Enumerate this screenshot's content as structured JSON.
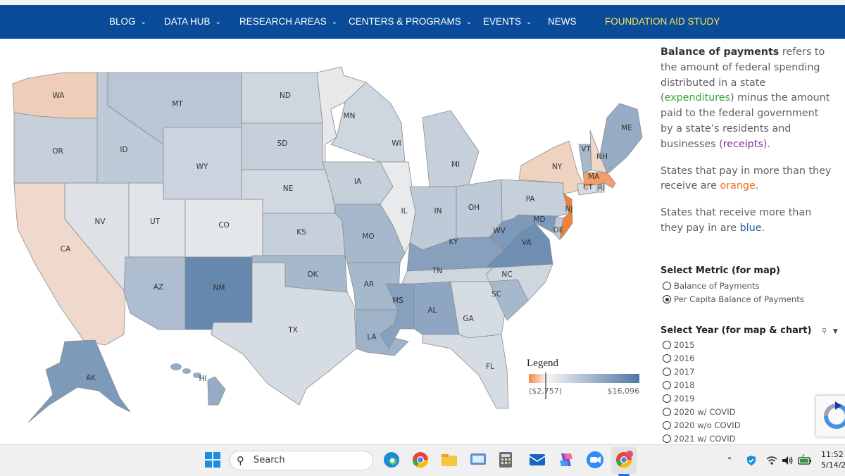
{
  "nav": {
    "items": [
      {
        "label": "BLOG",
        "has_menu": true
      },
      {
        "label": "DATA HUB",
        "has_menu": true
      },
      {
        "label": "RESEARCH AREAS",
        "has_menu": true
      },
      {
        "label": "CENTERS & PROGRAMS",
        "has_menu": true
      },
      {
        "label": "EVENTS",
        "has_menu": true
      },
      {
        "label": "NEWS",
        "has_menu": false
      },
      {
        "label": "FOUNDATION AID STUDY",
        "has_menu": false
      }
    ],
    "highlight_color": "#ffe74a",
    "bar_color": "#0a4c9a"
  },
  "map": {
    "states": [
      {
        "abbr": "WA",
        "level": -0.28
      },
      {
        "abbr": "OR",
        "level": 0.25
      },
      {
        "abbr": "CA",
        "level": -0.18
      },
      {
        "abbr": "NV",
        "level": 0.1
      },
      {
        "abbr": "ID",
        "level": 0.3
      },
      {
        "abbr": "MT",
        "level": 0.33
      },
      {
        "abbr": "WY",
        "level": 0.22
      },
      {
        "abbr": "UT",
        "level": 0.08
      },
      {
        "abbr": "CO",
        "level": 0.06
      },
      {
        "abbr": "AZ",
        "level": 0.4
      },
      {
        "abbr": "NM",
        "level": 0.85
      },
      {
        "abbr": "ND",
        "level": 0.2
      },
      {
        "abbr": "SD",
        "level": 0.25
      },
      {
        "abbr": "NE",
        "level": 0.18
      },
      {
        "abbr": "KS",
        "level": 0.25
      },
      {
        "abbr": "OK",
        "level": 0.45
      },
      {
        "abbr": "TX",
        "level": 0.15
      },
      {
        "abbr": "MN",
        "level": 0.05
      },
      {
        "abbr": "IA",
        "level": 0.25
      },
      {
        "abbr": "MO",
        "level": 0.45
      },
      {
        "abbr": "AR",
        "level": 0.45
      },
      {
        "abbr": "LA",
        "level": 0.5
      },
      {
        "abbr": "WI",
        "level": 0.2
      },
      {
        "abbr": "IL",
        "level": 0.03
      },
      {
        "abbr": "MI",
        "level": 0.25
      },
      {
        "abbr": "IN",
        "level": 0.3
      },
      {
        "abbr": "OH",
        "level": 0.3
      },
      {
        "abbr": "KY",
        "level": 0.65
      },
      {
        "abbr": "TN",
        "level": 0.2
      },
      {
        "abbr": "MS",
        "level": 0.65
      },
      {
        "abbr": "AL",
        "level": 0.6
      },
      {
        "abbr": "GA",
        "level": 0.15
      },
      {
        "abbr": "FL",
        "level": 0.15
      },
      {
        "abbr": "SC",
        "level": 0.45
      },
      {
        "abbr": "NC",
        "level": 0.2
      },
      {
        "abbr": "VA",
        "level": 0.8
      },
      {
        "abbr": "WV",
        "level": 0.7
      },
      {
        "abbr": "MD",
        "level": 0.7
      },
      {
        "abbr": "DE",
        "level": 0.3
      },
      {
        "abbr": "PA",
        "level": 0.25
      },
      {
        "abbr": "NJ",
        "level": -0.95
      },
      {
        "abbr": "NY",
        "level": -0.25
      },
      {
        "abbr": "CT",
        "level": 0.15
      },
      {
        "abbr": "RI",
        "level": 0.2
      },
      {
        "abbr": "MA",
        "level": -0.7
      },
      {
        "abbr": "VT",
        "level": 0.45
      },
      {
        "abbr": "NH",
        "level": -0.2
      },
      {
        "abbr": "ME",
        "level": 0.55
      },
      {
        "abbr": "AK",
        "level": 0.7
      },
      {
        "abbr": "HI",
        "level": 0.55
      }
    ],
    "legend": {
      "title": "Legend",
      "min_label": "($2,757)",
      "max_label": "$16,096",
      "neg_color": "#f08a4b",
      "pos_color": "#4e76a3"
    }
  },
  "side": {
    "intro_bold": "Balance of payments",
    "intro_1": " refers to the amount of federal spending distributed in a state (",
    "expenditures": "expenditures",
    "intro_2": ") minus the amount paid to the federal government by a state’s residents and businesses (",
    "receipts": "receipts",
    "intro_3": ").",
    "orange_1": "States that pay in more than they receive are ",
    "orange_word": "orange",
    "period": ".",
    "blue_1": "States that receive more than they pay in are ",
    "blue_word": "blue",
    "metric_title": "Select Metric (for map)",
    "metric_options": [
      {
        "label": "Balance of Payments",
        "selected": false
      },
      {
        "label": "Per Capita Balance of Payments",
        "selected": true
      }
    ],
    "year_title": "Select Year (for map & chart)",
    "year_options": [
      {
        "label": "2015"
      },
      {
        "label": "2016"
      },
      {
        "label": "2017"
      },
      {
        "label": "2018"
      },
      {
        "label": "2019"
      },
      {
        "label": "2020 w/ COVID"
      },
      {
        "label": "2020 w/o COVID"
      },
      {
        "label": "2021 w/ COVID"
      }
    ]
  },
  "taskbar": {
    "search_placeholder": "Search",
    "time": "11:52",
    "date": "5/14/2"
  }
}
